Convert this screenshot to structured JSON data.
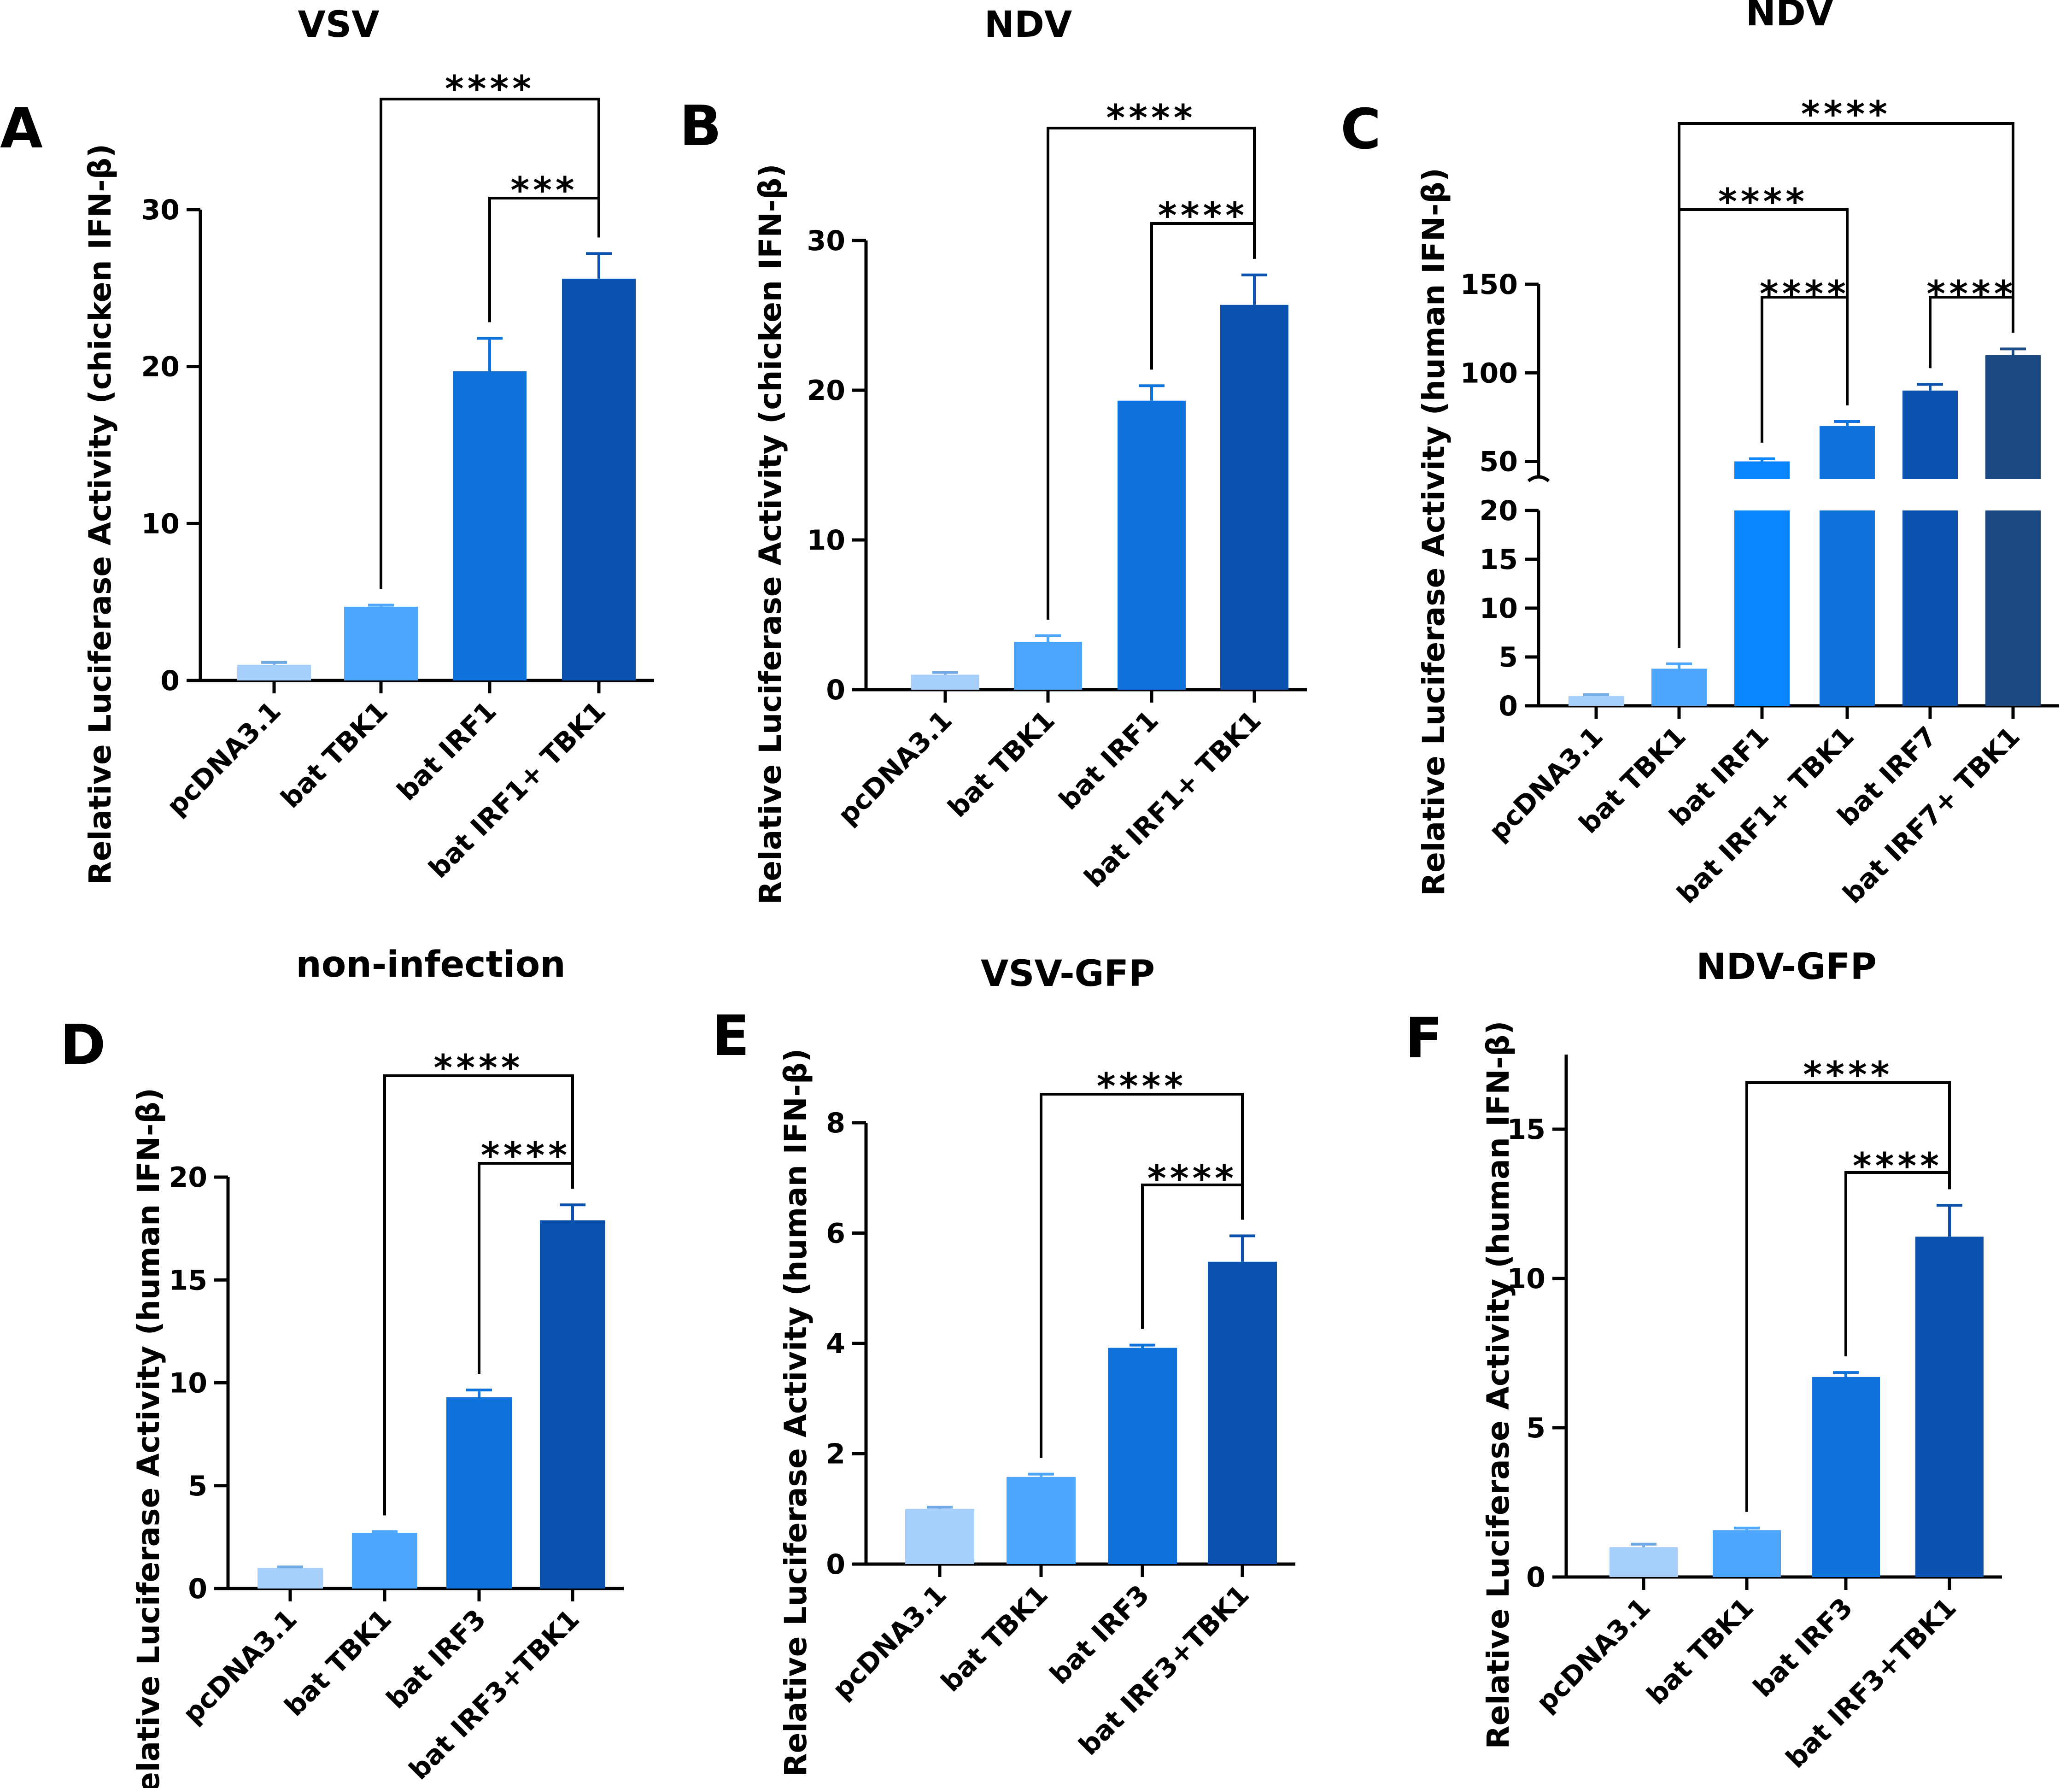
{
  "chart_data": [
    {
      "panel": "A",
      "type": "bar",
      "title": "VSV",
      "ylabel": "Relative Luciferase Activity (chicken IFN-β)",
      "categories": [
        "pcDNA3.1",
        "bat TBK1",
        "bat IRF1",
        "bat IRF1+ TBK1"
      ],
      "values": [
        1.0,
        4.7,
        19.7,
        25.6
      ],
      "errors": [
        0.15,
        0.1,
        2.1,
        1.6
      ],
      "colors": [
        "#a6cffb",
        "#4da6fb",
        "#0f73db",
        "#0a52ad"
      ],
      "ylim": [
        0,
        30
      ],
      "yticks": [
        0,
        10,
        20,
        30
      ],
      "tick_labels": [
        "0",
        "10",
        "20",
        "30"
      ],
      "comparisons": [
        {
          "from": 1,
          "to": 3,
          "label": "****"
        },
        {
          "from": 2,
          "to": 3,
          "label": "***"
        }
      ]
    },
    {
      "panel": "B",
      "type": "bar",
      "title": "NDV",
      "ylabel": "Relative Luciferase Activity (chicken IFN-β)",
      "categories": [
        "pcDNA3.1",
        "bat TBK1",
        "bat IRF1",
        "bat IRF1+ TBK1"
      ],
      "values": [
        1.0,
        3.2,
        19.3,
        25.7
      ],
      "errors": [
        0.15,
        0.4,
        1.0,
        2.0
      ],
      "colors": [
        "#a6cffb",
        "#4da6fb",
        "#0f73db",
        "#0a52ad"
      ],
      "ylim": [
        0,
        30
      ],
      "yticks": [
        0,
        10,
        20,
        30
      ],
      "tick_labels": [
        "0",
        "10",
        "20",
        "30"
      ],
      "comparisons": [
        {
          "from": 1,
          "to": 3,
          "label": "****"
        },
        {
          "from": 2,
          "to": 3,
          "label": "****"
        }
      ]
    },
    {
      "panel": "C",
      "type": "bar",
      "title": "NDV",
      "ylabel": "Relative Luciferase Activity (human IFN-β)",
      "categories": [
        "pcDNA3.1",
        "bat TBK1",
        "bat IRF1",
        "bat IRF1+ TBK1",
        "bat IRF7",
        "bat IRF7+ TBK1"
      ],
      "values": [
        1.0,
        3.8,
        50,
        70,
        90,
        110
      ],
      "errors": [
        0.15,
        0.5,
        1.5,
        2.5,
        3.5,
        3.5
      ],
      "colors": [
        "#a6cffb",
        "#4da6fb",
        "#0a84ff",
        "#0f73db",
        "#0a52ad",
        "#1b4a85"
      ],
      "broken_axis": {
        "lower": [
          0,
          20
        ],
        "upper": [
          40,
          150
        ]
      },
      "yticks_lower": [
        0,
        5,
        10,
        15,
        20
      ],
      "tick_labels_lower": [
        "0",
        "5",
        "10",
        "15",
        "20"
      ],
      "yticks_upper": [
        50,
        100,
        150
      ],
      "tick_labels_upper": [
        "50",
        "100",
        "150"
      ],
      "comparisons": [
        {
          "from": 1,
          "to": 5,
          "label": "****"
        },
        {
          "from": 1,
          "to": 3,
          "label": "****"
        },
        {
          "from": 2,
          "to": 3,
          "label": "****"
        },
        {
          "from": 4,
          "to": 5,
          "label": "****"
        }
      ]
    },
    {
      "panel": "D",
      "type": "bar",
      "title": "non-infection",
      "ylabel": "Relative Luciferase Activity (human IFN-β)",
      "categories": [
        "pcDNA3.1",
        "bat TBK1",
        "bat IRF3",
        "bat IRF3+TBK1"
      ],
      "values": [
        1.0,
        2.7,
        9.3,
        17.9
      ],
      "errors": [
        0.05,
        0.07,
        0.35,
        0.75
      ],
      "colors": [
        "#a6cffb",
        "#4da6fb",
        "#0f73db",
        "#0a52ad"
      ],
      "ylim": [
        0,
        20
      ],
      "yticks": [
        0,
        5,
        10,
        15,
        20
      ],
      "tick_labels": [
        "0",
        "5",
        "10",
        "15",
        "20"
      ],
      "comparisons": [
        {
          "from": 1,
          "to": 3,
          "label": "****"
        },
        {
          "from": 2,
          "to": 3,
          "label": "****"
        }
      ]
    },
    {
      "panel": "E",
      "type": "bar",
      "title": "VSV-GFP",
      "ylabel": "Relative Luciferase Activity (human IFN-β)",
      "categories": [
        "pcDNA3.1",
        "bat TBK1",
        "bat IRF3",
        "bat IRF3+TBK1"
      ],
      "values": [
        1.0,
        1.58,
        3.92,
        5.48
      ],
      "errors": [
        0.03,
        0.05,
        0.05,
        0.47
      ],
      "colors": [
        "#a6cffb",
        "#4da6fb",
        "#0f73db",
        "#0a52ad"
      ],
      "ylim": [
        0,
        8
      ],
      "yticks": [
        0,
        2,
        4,
        6,
        8
      ],
      "tick_labels": [
        "0",
        "2",
        "4",
        "6",
        "8"
      ],
      "comparisons": [
        {
          "from": 1,
          "to": 3,
          "label": "****"
        },
        {
          "from": 2,
          "to": 3,
          "label": "****"
        }
      ]
    },
    {
      "panel": "F",
      "type": "bar",
      "title": "NDV-GFP",
      "ylabel": "Relative Luciferase Activity (human IFN-β)",
      "categories": [
        "pcDNA3.1",
        "bat TBK1",
        "bat IRF3",
        "bat IRF3+TBK1"
      ],
      "values": [
        1.0,
        1.57,
        6.7,
        11.4
      ],
      "errors": [
        0.1,
        0.07,
        0.15,
        1.05
      ],
      "colors": [
        "#a6cffb",
        "#4da6fb",
        "#0f73db",
        "#0a52ad"
      ],
      "ylim": [
        0,
        17.5
      ],
      "yticks": [
        0,
        5,
        10,
        15
      ],
      "tick_labels": [
        "0",
        "5",
        "10",
        "15"
      ],
      "comparisons": [
        {
          "from": 1,
          "to": 3,
          "label": "****"
        },
        {
          "from": 2,
          "to": 3,
          "label": "****"
        }
      ]
    }
  ]
}
